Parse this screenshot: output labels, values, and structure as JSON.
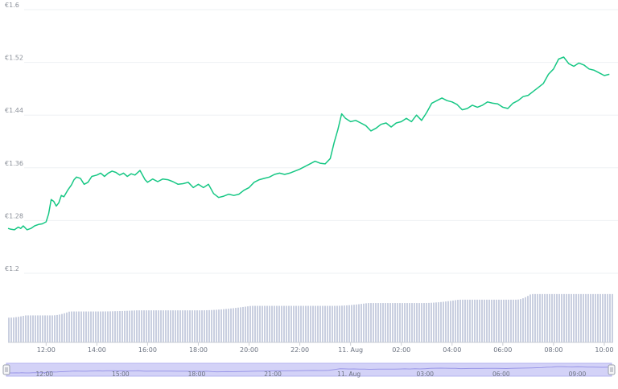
{
  "chart_data": {
    "type": "line",
    "series": [
      {
        "color": "#16c784",
        "points": [
          [
            10.5,
            1.268
          ],
          [
            10.6,
            1.267
          ],
          [
            10.75,
            1.266
          ],
          [
            10.9,
            1.27
          ],
          [
            11.0,
            1.268
          ],
          [
            11.1,
            1.272
          ],
          [
            11.25,
            1.266
          ],
          [
            11.4,
            1.268
          ],
          [
            11.55,
            1.272
          ],
          [
            11.7,
            1.274
          ],
          [
            11.85,
            1.275
          ],
          [
            12.0,
            1.278
          ],
          [
            12.1,
            1.29
          ],
          [
            12.2,
            1.312
          ],
          [
            12.3,
            1.309
          ],
          [
            12.4,
            1.302
          ],
          [
            12.5,
            1.307
          ],
          [
            12.6,
            1.318
          ],
          [
            12.7,
            1.316
          ],
          [
            12.85,
            1.326
          ],
          [
            13.0,
            1.334
          ],
          [
            13.1,
            1.342
          ],
          [
            13.2,
            1.346
          ],
          [
            13.35,
            1.344
          ],
          [
            13.5,
            1.335
          ],
          [
            13.65,
            1.338
          ],
          [
            13.8,
            1.347
          ],
          [
            14.0,
            1.349
          ],
          [
            14.15,
            1.352
          ],
          [
            14.3,
            1.347
          ],
          [
            14.45,
            1.352
          ],
          [
            14.6,
            1.355
          ],
          [
            14.75,
            1.353
          ],
          [
            14.9,
            1.349
          ],
          [
            15.05,
            1.352
          ],
          [
            15.2,
            1.347
          ],
          [
            15.35,
            1.351
          ],
          [
            15.5,
            1.349
          ],
          [
            15.7,
            1.356
          ],
          [
            15.9,
            1.342
          ],
          [
            16.0,
            1.338
          ],
          [
            16.2,
            1.343
          ],
          [
            16.4,
            1.339
          ],
          [
            16.6,
            1.343
          ],
          [
            16.8,
            1.342
          ],
          [
            17.0,
            1.339
          ],
          [
            17.2,
            1.335
          ],
          [
            17.4,
            1.336
          ],
          [
            17.6,
            1.338
          ],
          [
            17.8,
            1.33
          ],
          [
            18.0,
            1.335
          ],
          [
            18.2,
            1.33
          ],
          [
            18.4,
            1.335
          ],
          [
            18.6,
            1.321
          ],
          [
            18.8,
            1.315
          ],
          [
            19.0,
            1.317
          ],
          [
            19.2,
            1.32
          ],
          [
            19.4,
            1.318
          ],
          [
            19.6,
            1.32
          ],
          [
            19.8,
            1.326
          ],
          [
            20.0,
            1.33
          ],
          [
            20.2,
            1.338
          ],
          [
            20.4,
            1.342
          ],
          [
            20.6,
            1.344
          ],
          [
            20.8,
            1.346
          ],
          [
            21.0,
            1.35
          ],
          [
            21.2,
            1.352
          ],
          [
            21.4,
            1.35
          ],
          [
            21.6,
            1.352
          ],
          [
            21.8,
            1.355
          ],
          [
            22.0,
            1.358
          ],
          [
            22.2,
            1.362
          ],
          [
            22.4,
            1.366
          ],
          [
            22.6,
            1.37
          ],
          [
            22.8,
            1.367
          ],
          [
            23.0,
            1.366
          ],
          [
            23.2,
            1.374
          ],
          [
            23.35,
            1.398
          ],
          [
            23.5,
            1.418
          ],
          [
            23.65,
            1.442
          ],
          [
            23.8,
            1.435
          ],
          [
            24.0,
            1.43
          ],
          [
            24.2,
            1.432
          ],
          [
            24.4,
            1.428
          ],
          [
            24.6,
            1.424
          ],
          [
            24.8,
            1.416
          ],
          [
            25.0,
            1.42
          ],
          [
            25.2,
            1.426
          ],
          [
            25.4,
            1.428
          ],
          [
            25.6,
            1.422
          ],
          [
            25.8,
            1.428
          ],
          [
            26.0,
            1.43
          ],
          [
            26.2,
            1.435
          ],
          [
            26.4,
            1.43
          ],
          [
            26.6,
            1.44
          ],
          [
            26.8,
            1.432
          ],
          [
            27.0,
            1.444
          ],
          [
            27.2,
            1.458
          ],
          [
            27.4,
            1.462
          ],
          [
            27.6,
            1.466
          ],
          [
            27.8,
            1.462
          ],
          [
            28.0,
            1.46
          ],
          [
            28.2,
            1.456
          ],
          [
            28.4,
            1.448
          ],
          [
            28.6,
            1.45
          ],
          [
            28.8,
            1.455
          ],
          [
            29.0,
            1.452
          ],
          [
            29.2,
            1.455
          ],
          [
            29.4,
            1.46
          ],
          [
            29.6,
            1.458
          ],
          [
            29.8,
            1.457
          ],
          [
            30.0,
            1.452
          ],
          [
            30.2,
            1.45
          ],
          [
            30.4,
            1.458
          ],
          [
            30.6,
            1.462
          ],
          [
            30.8,
            1.468
          ],
          [
            31.0,
            1.47
          ],
          [
            31.2,
            1.476
          ],
          [
            31.4,
            1.482
          ],
          [
            31.6,
            1.488
          ],
          [
            31.8,
            1.502
          ],
          [
            32.0,
            1.51
          ],
          [
            32.2,
            1.525
          ],
          [
            32.4,
            1.528
          ],
          [
            32.6,
            1.518
          ],
          [
            32.8,
            1.514
          ],
          [
            33.0,
            1.519
          ],
          [
            33.2,
            1.516
          ],
          [
            33.4,
            1.51
          ],
          [
            33.6,
            1.508
          ],
          [
            33.8,
            1.504
          ],
          [
            34.0,
            1.5
          ],
          [
            34.2,
            1.502
          ]
        ]
      }
    ],
    "yticks": [
      "€1.6",
      "€1.52",
      "€1.44",
      "€1.36",
      "€1.28",
      "€1.2"
    ],
    "yvalues": [
      1.6,
      1.52,
      1.44,
      1.36,
      1.28,
      1.2
    ],
    "ylim": [
      1.2,
      1.6
    ],
    "xlim": [
      10.5,
      34.35
    ],
    "xticks": [
      {
        "label": "12:00",
        "v": 12
      },
      {
        "label": "14:00",
        "v": 14
      },
      {
        "label": "16:00",
        "v": 16
      },
      {
        "label": "18:00",
        "v": 18
      },
      {
        "label": "20:00",
        "v": 20
      },
      {
        "label": "22:00",
        "v": 22
      },
      {
        "label": "11. Aug",
        "v": 24
      },
      {
        "label": "02:00",
        "v": 26
      },
      {
        "label": "04:00",
        "v": 28
      },
      {
        "label": "06:00",
        "v": 30
      },
      {
        "label": "08:00",
        "v": 32
      },
      {
        "label": "10:00",
        "v": 34
      }
    ],
    "volume": {
      "color": "#c9cfe0",
      "steps": [
        [
          10.5,
          0.44
        ],
        [
          12.2,
          0.48
        ],
        [
          14.0,
          0.55
        ],
        [
          18.0,
          0.57
        ],
        [
          23.3,
          0.65
        ],
        [
          26.8,
          0.7
        ],
        [
          30.5,
          0.76
        ],
        [
          32.0,
          0.86
        ],
        [
          34.35,
          0.86
        ]
      ]
    },
    "navigator": {
      "ticks": [
        "12:00",
        "15:00",
        "18:00",
        "21:00",
        "11. Aug",
        "03:00",
        "06:00",
        "09:00"
      ],
      "tick_values": [
        12,
        15,
        18,
        21,
        24,
        27,
        30,
        33
      ],
      "fill": "#d3d2f7"
    },
    "grid": true
  }
}
